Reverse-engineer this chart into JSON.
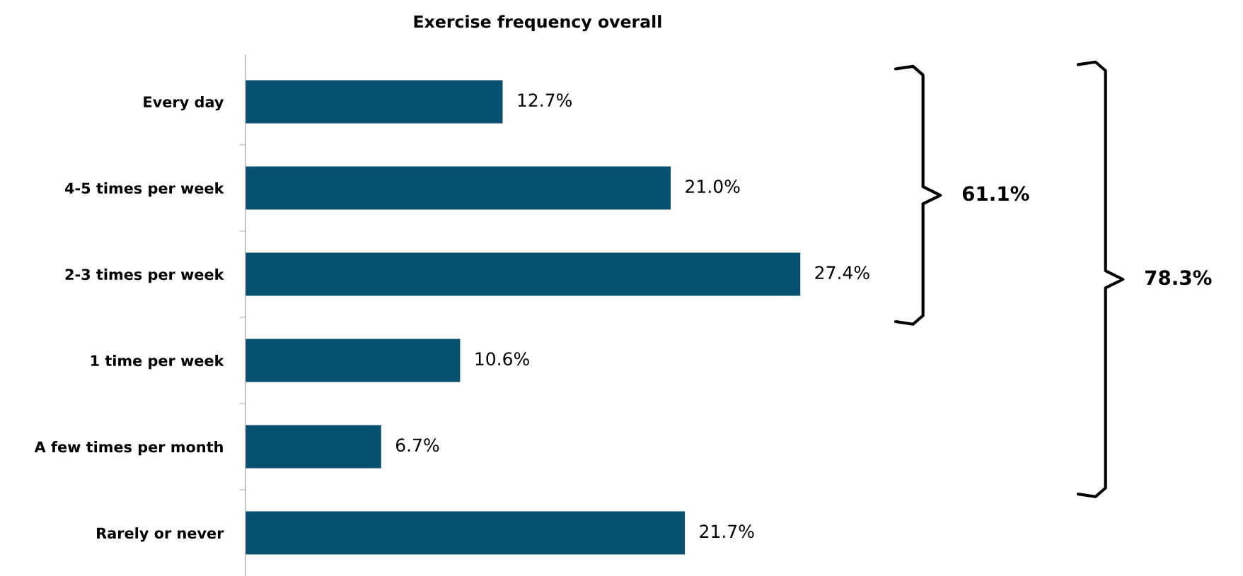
{
  "chart_data": {
    "type": "bar",
    "orientation": "horizontal",
    "title": "Exercise frequency overall",
    "categories": [
      "Every day",
      "4-5 times per week",
      "2-3 times per week",
      "1 time per week",
      "A few times per month",
      "Rarely or never"
    ],
    "values": [
      12.7,
      21.0,
      27.4,
      10.6,
      6.7,
      21.7
    ],
    "value_labels": [
      "12.7%",
      "21.0%",
      "27.4%",
      "10.6%",
      "6.7%",
      "21.7%"
    ],
    "color": "#08506f",
    "grid": false,
    "annotations": [
      "61.1%",
      "78.3%"
    ]
  }
}
